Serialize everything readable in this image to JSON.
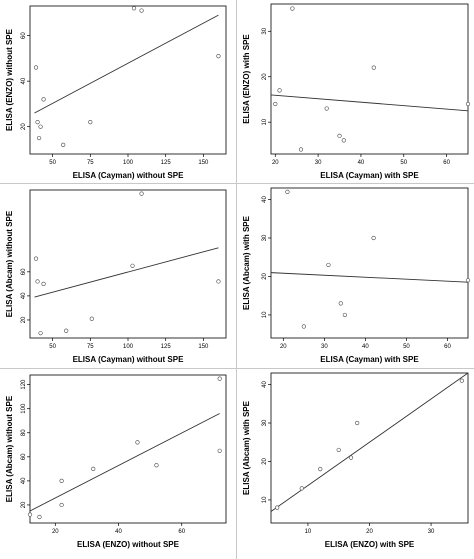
{
  "chart_data": [
    {
      "type": "scatter",
      "xlabel": "ELISA (Cayman) without SPE",
      "ylabel": "ELISA (ENZO) without SPE",
      "xticks": [
        50,
        75,
        100,
        125,
        150
      ],
      "yticks": [
        20,
        40,
        60
      ],
      "xlim": [
        35,
        165
      ],
      "ylim": [
        8,
        73
      ],
      "points": [
        [
          39,
          46
        ],
        [
          40,
          22
        ],
        [
          41,
          15
        ],
        [
          42,
          20
        ],
        [
          44,
          32
        ],
        [
          57,
          12
        ],
        [
          75,
          22
        ],
        [
          104,
          72
        ],
        [
          109,
          71
        ],
        [
          160,
          51
        ]
      ],
      "fit": [
        [
          38,
          26
        ],
        [
          160,
          69
        ]
      ]
    },
    {
      "type": "scatter",
      "xlabel": "ELISA (Cayman) with SPE",
      "ylabel": "ELISA (ENZO) with SPE",
      "xticks": [
        20,
        30,
        40,
        50,
        60
      ],
      "yticks": [
        10,
        20,
        30
      ],
      "xlim": [
        19,
        65
      ],
      "ylim": [
        3,
        36
      ],
      "points": [
        [
          20,
          14
        ],
        [
          21,
          17
        ],
        [
          24,
          35
        ],
        [
          26,
          4
        ],
        [
          32,
          13
        ],
        [
          35,
          7
        ],
        [
          36,
          6
        ],
        [
          43,
          22
        ],
        [
          65,
          14
        ]
      ],
      "fit": [
        [
          19,
          16
        ],
        [
          65,
          12.5
        ]
      ]
    },
    {
      "type": "scatter",
      "xlabel": "ELISA (Cayman) without SPE",
      "ylabel": "ELISA (Abcam) without SPE",
      "xticks": [
        50,
        75,
        100,
        125,
        150
      ],
      "yticks": [
        20,
        40,
        60
      ],
      "xlim": [
        35,
        165
      ],
      "ylim": [
        5,
        128
      ],
      "points": [
        [
          39,
          71
        ],
        [
          40,
          52
        ],
        [
          42,
          9
        ],
        [
          44,
          50
        ],
        [
          59,
          11
        ],
        [
          76,
          21
        ],
        [
          103,
          65
        ],
        [
          109,
          125
        ],
        [
          160,
          52
        ]
      ],
      "fit": [
        [
          38,
          39
        ],
        [
          160,
          80
        ]
      ]
    },
    {
      "type": "scatter",
      "xlabel": "ELISA (Cayman) with SPE",
      "ylabel": "ELISA (Abcam) with SPE",
      "xticks": [
        20,
        30,
        40,
        50,
        60
      ],
      "yticks": [
        10,
        20,
        30,
        40
      ],
      "xlim": [
        17,
        65
      ],
      "ylim": [
        4,
        43
      ],
      "points": [
        [
          21,
          42
        ],
        [
          25,
          7
        ],
        [
          31,
          23
        ],
        [
          34,
          13
        ],
        [
          35,
          10
        ],
        [
          42,
          30
        ],
        [
          65,
          19
        ]
      ],
      "fit": [
        [
          17,
          21
        ],
        [
          65,
          18.5
        ]
      ]
    },
    {
      "type": "scatter",
      "xlabel": "ELISA (ENZO) without SPE",
      "ylabel": "ELISA (Abcam) without SPE",
      "xticks": [
        20,
        40,
        60
      ],
      "yticks": [
        20,
        40,
        60,
        80,
        100,
        120
      ],
      "xlim": [
        12,
        74
      ],
      "ylim": [
        5,
        128
      ],
      "points": [
        [
          12,
          12
        ],
        [
          15,
          10
        ],
        [
          22,
          40
        ],
        [
          22,
          20
        ],
        [
          32,
          50
        ],
        [
          46,
          72
        ],
        [
          52,
          53
        ],
        [
          72,
          125
        ],
        [
          72,
          65
        ]
      ],
      "fit": [
        [
          12,
          15
        ],
        [
          72,
          96
        ]
      ]
    },
    {
      "type": "scatter",
      "xlabel": "ELISA (ENZO) with SPE",
      "ylabel": "ELISA (Abcam) with SPE",
      "xticks": [
        10,
        20,
        30
      ],
      "yticks": [
        10,
        20,
        30,
        40
      ],
      "xlim": [
        4,
        36
      ],
      "ylim": [
        4,
        43
      ],
      "points": [
        [
          5,
          8
        ],
        [
          9,
          13
        ],
        [
          12,
          18
        ],
        [
          15,
          23
        ],
        [
          17,
          21
        ],
        [
          18,
          30
        ],
        [
          35,
          41
        ]
      ],
      "fit": [
        [
          4,
          7
        ],
        [
          36,
          43
        ]
      ]
    }
  ]
}
